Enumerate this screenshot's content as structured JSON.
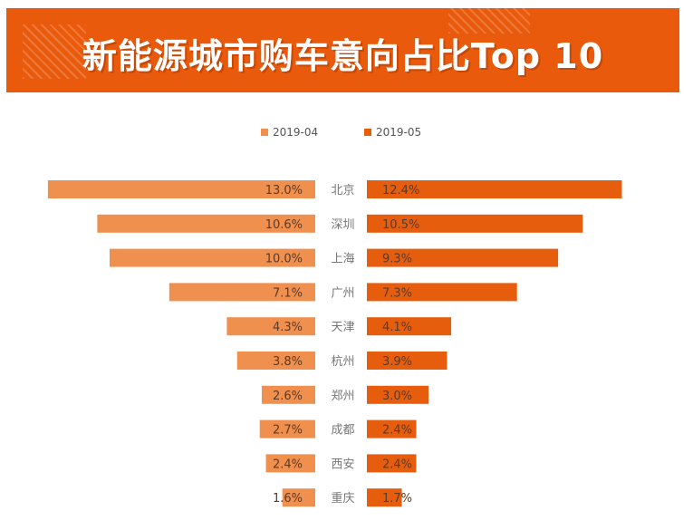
{
  "banner": {
    "title": "新能源城市购车意向占比Top 10"
  },
  "colors": {
    "banner": "#ea5a0c",
    "series_left": "#f0904f",
    "series_right": "#e65e0d"
  },
  "chart_data": {
    "type": "bar",
    "title": "新能源城市购车意向占比Top 10",
    "layout": "butterfly",
    "categories": [
      "北京",
      "深圳",
      "上海",
      "广州",
      "天津",
      "杭州",
      "郑州",
      "成都",
      "西安",
      "重庆"
    ],
    "series": [
      {
        "name": "2019-04",
        "values": [
          13.0,
          10.6,
          10.0,
          7.1,
          4.3,
          3.8,
          2.6,
          2.7,
          2.4,
          1.6
        ],
        "labels": [
          "13.0%",
          "10.6%",
          "10.0%",
          "7.1%",
          "4.3%",
          "3.8%",
          "2.6%",
          "2.7%",
          "2.4%",
          "1.6%"
        ]
      },
      {
        "name": "2019-05",
        "values": [
          12.4,
          10.5,
          9.3,
          7.3,
          4.1,
          3.9,
          3.0,
          2.4,
          2.4,
          1.7
        ],
        "labels": [
          "12.4%",
          "10.5%",
          "9.3%",
          "7.3%",
          "4.1%",
          "3.9%",
          "3.0%",
          "2.4%",
          "2.4%",
          "1.7%"
        ]
      }
    ],
    "legend_position": "top-center",
    "value_unit": "%"
  }
}
